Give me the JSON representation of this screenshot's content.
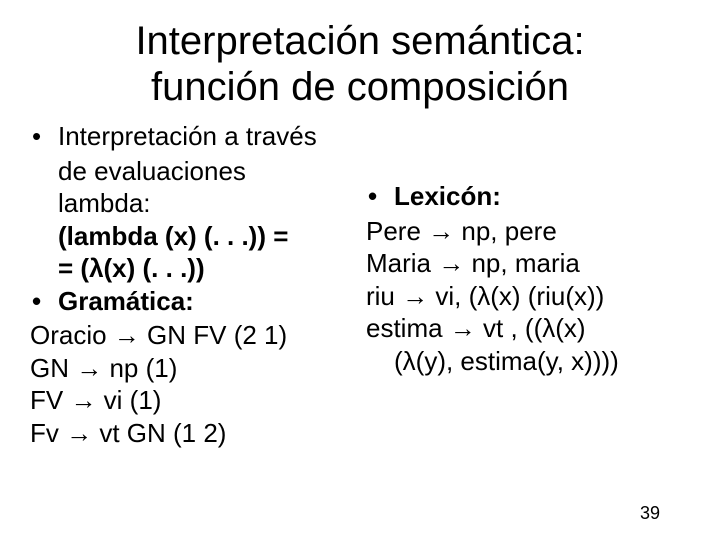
{
  "title_line1": "Interpretación semántica:",
  "title_line2": "función de composición",
  "left": {
    "b1_l1": "Interpretación a través",
    "b1_l2": "de evaluaciones",
    "b1_l3": "lambda:",
    "b1_l4": "(lambda (x) (. . .)) =",
    "b1_l5": "= (λ(x) (. . .))",
    "b2": "Gramática:",
    "g1": "Oracio  → GN FV (2 1)",
    "g2": "GN → np (1)",
    "g3": "FV → vi (1)",
    "g4": "Fv → vt GN (1 2)"
  },
  "right": {
    "b1": "Lexicón:",
    "l1": "Pere → np, pere",
    "l2": "Maria → np, maria",
    "l3": "riu → vi, (λ(x) (riu(x))",
    "l4a": "estima → vt , ((λ(x)",
    "l4b": "(λ(y), estima(y, x))))"
  },
  "pagenum": "39",
  "colors": {
    "bg": "#ffffff",
    "text": "#000000"
  },
  "fontsizes": {
    "title": 40,
    "body": 26,
    "pagenum": 18
  }
}
